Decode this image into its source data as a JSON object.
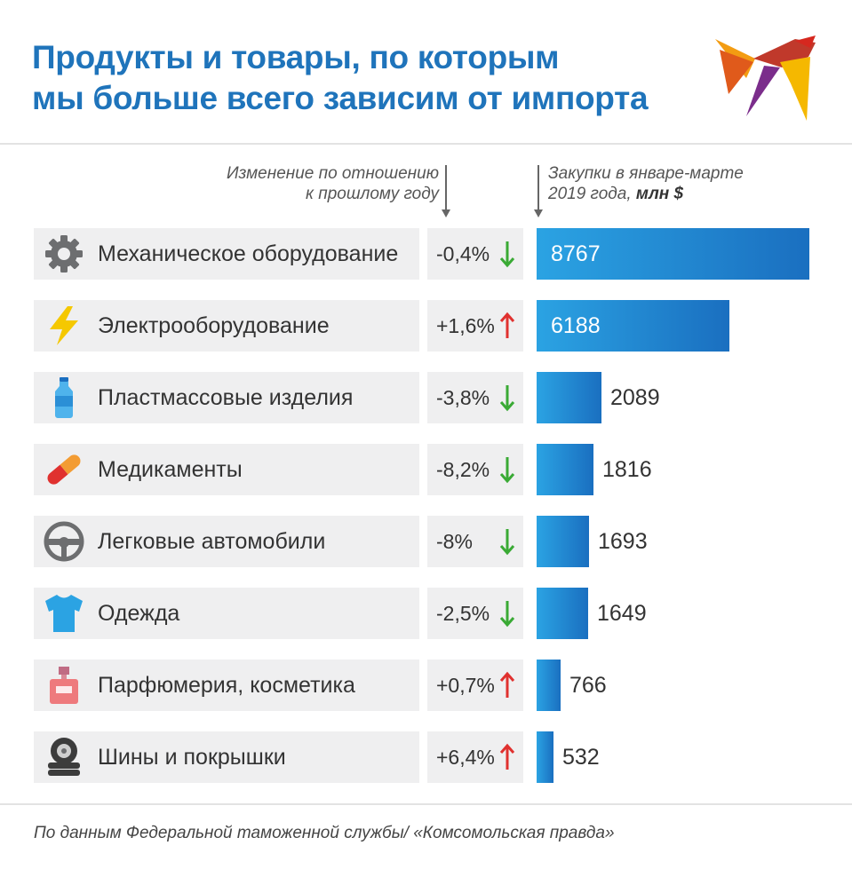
{
  "title_line1": "Продукты и товары, по которым",
  "title_line2": "мы больше всего зависим от импорта",
  "change_header_line1": "Изменение по отношению",
  "change_header_line2": "к прошлому году",
  "value_header_line1": "Закупки в январе-марте",
  "value_header_line2_prefix": "2019 года,",
  "value_header_unit": "млн $",
  "source": "По данным Федеральной таможенной службы/ «Комсомольская правда»",
  "colors": {
    "title": "#1f74bb",
    "bar_start": "#2ba3e3",
    "bar_end": "#1a6fc0",
    "down": "#3aaa35",
    "up": "#e0312f"
  },
  "chart_data": {
    "type": "bar",
    "orientation": "horizontal",
    "title": "Продукты и товары, по которым мы больше всего зависим от импорта",
    "categories": [
      "Механическое оборудование",
      "Электрооборудование",
      "Пластмассовые изделия",
      "Медикаменты",
      "Легковые автомобили",
      "Одежда",
      "Парфюмерия, косметика",
      "Шины и покрышки"
    ],
    "values": [
      8767,
      6188,
      2089,
      1816,
      1693,
      1649,
      766,
      532
    ],
    "value_labels": [
      "8767",
      "6188",
      "2089",
      "1816",
      "1693",
      "1649",
      "766",
      "532"
    ],
    "changes": [
      "-0,4%",
      "+1,6%",
      "-3,8%",
      "-8,2%",
      "-8%",
      "-2,5%",
      "+0,7%",
      "+6,4%"
    ],
    "change_direction": [
      "down",
      "up",
      "down",
      "down",
      "down",
      "down",
      "up",
      "up"
    ],
    "icons": [
      "gear-icon",
      "lightning-icon",
      "bottle-icon",
      "pill-icon",
      "steering-wheel-icon",
      "tshirt-icon",
      "perfume-icon",
      "tire-icon"
    ],
    "xlim": [
      0,
      8767
    ]
  }
}
